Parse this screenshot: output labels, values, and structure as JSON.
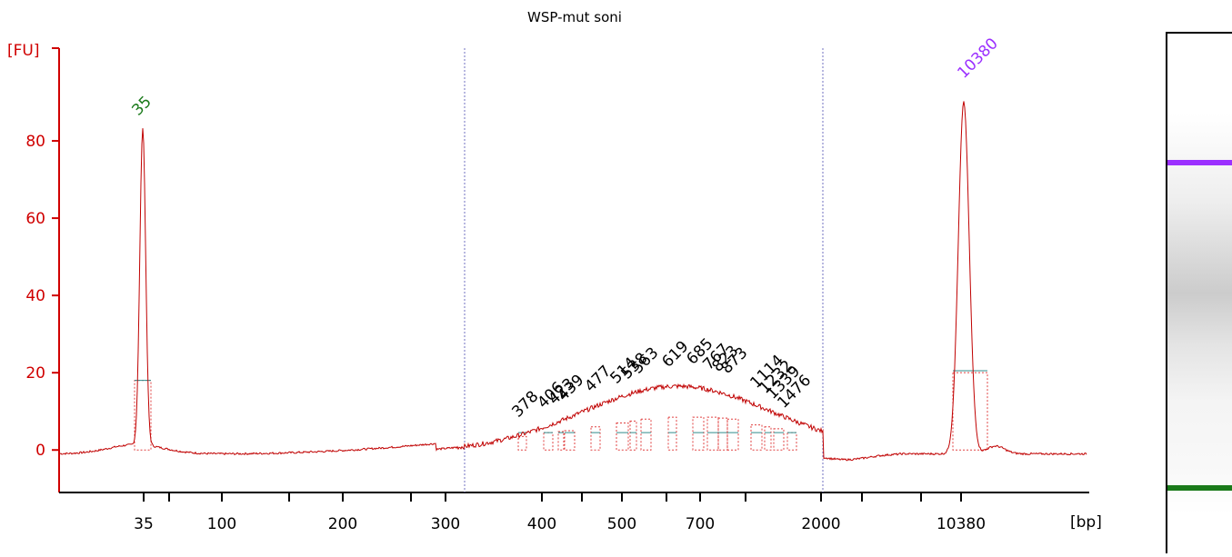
{
  "chart_data": {
    "type": "line",
    "title": "WSP-mut soni",
    "ylabel": "[FU]",
    "xlabel": "[bp]",
    "ylim": [
      -11,
      104
    ],
    "y_ticks": [
      "0",
      "20",
      "40",
      "60",
      "80"
    ],
    "x_ticks": [
      "35",
      "100",
      "200",
      "300",
      "400",
      "500",
      "700",
      "2000",
      "10380"
    ],
    "series_color": "#c00000",
    "marker_peaks": [
      {
        "label": "35",
        "value": 82,
        "color": "#1a7a1a"
      },
      {
        "label": "10380",
        "value": 91,
        "color": "#9b30ff"
      }
    ],
    "smear_peaks": [
      {
        "label": "378",
        "value": 7
      },
      {
        "label": "406",
        "value": 9
      },
      {
        "label": "423",
        "value": 9.5
      },
      {
        "label": "439",
        "value": 10
      },
      {
        "label": "477",
        "value": 12
      },
      {
        "label": "514",
        "value": 14
      },
      {
        "label": "538",
        "value": 15
      },
      {
        "label": "563",
        "value": 16
      },
      {
        "label": "619",
        "value": 17
      },
      {
        "label": "685",
        "value": 17
      },
      {
        "label": "767",
        "value": 17
      },
      {
        "label": "823",
        "value": 16.5
      },
      {
        "label": "873",
        "value": 16
      },
      {
        "label": "1114",
        "value": 13
      },
      {
        "label": "1232",
        "value": 12
      },
      {
        "label": "1339",
        "value": 11
      },
      {
        "label": "1476",
        "value": 9
      }
    ],
    "grid": false,
    "legend": "none"
  },
  "gel_bands": [
    {
      "name": "upper-marker",
      "color": "#9b30ff"
    },
    {
      "name": "lower-marker",
      "color": "#1a7a1a"
    }
  ]
}
